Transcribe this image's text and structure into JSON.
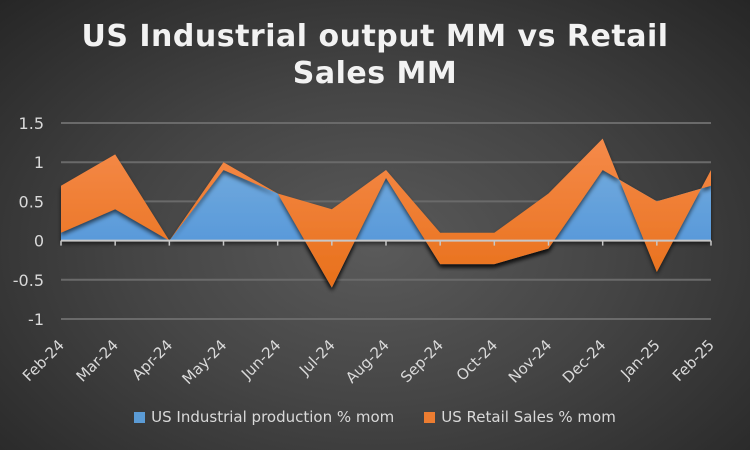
{
  "chart_data": {
    "type": "area",
    "stacked": true,
    "title_lines": [
      "US Industrial output MM vs Retail",
      "Sales MM"
    ],
    "categories": [
      "Feb-24",
      "Mar-24",
      "Apr-24",
      "May-24",
      "Jun-24",
      "Jul-24",
      "Aug-24",
      "Sep-24",
      "Oct-24",
      "Nov-24",
      "Dec-24",
      "Jan-25",
      "Feb-25"
    ],
    "series": [
      {
        "name": "US Industrial production % mom",
        "color": "#5b9bd5",
        "values": [
          0.1,
          0.4,
          0.0,
          0.9,
          0.6,
          -0.6,
          0.8,
          -0.3,
          -0.3,
          -0.1,
          0.9,
          0.5,
          0.7
        ]
      },
      {
        "name": "US Retail Sales % mom",
        "color": "#ed7d31",
        "values": [
          0.6,
          0.7,
          0.0,
          0.1,
          0.0,
          1.0,
          0.1,
          0.4,
          0.4,
          0.7,
          0.4,
          -0.9,
          0.2
        ]
      }
    ],
    "ylim": [
      -1,
      1.5
    ],
    "yticks": [
      "1.5",
      "1",
      "0.5",
      "0",
      "-0.5",
      "-1"
    ],
    "grid": true,
    "legend_position": "bottom"
  }
}
